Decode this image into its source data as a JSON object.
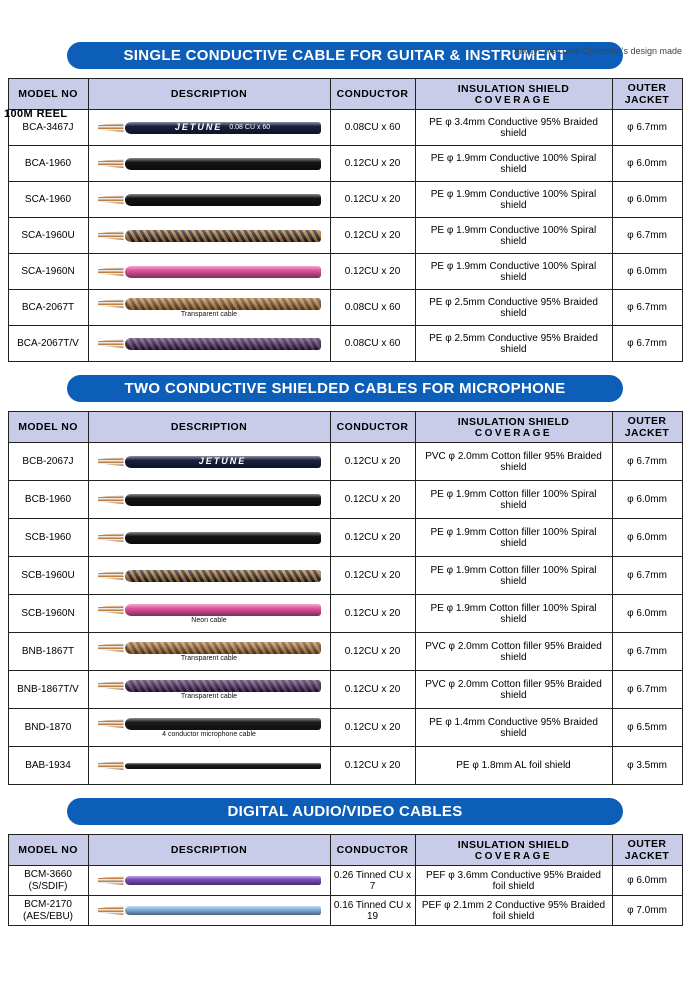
{
  "page": {
    "top_note": "Always welcome Customer's design made",
    "reel_label": "100M REEL"
  },
  "colors": {
    "banner_blue": "#0d5eb8",
    "header_bg": "#c9cce9",
    "copper": "#b97b3c"
  },
  "columns": {
    "model": "MODEL NO",
    "description": "DESCRIPTION",
    "conductor": "CONDUCTOR",
    "insulation_line1": "INSULATION SHIELD",
    "insulation_line2": "COVERAGE",
    "jacket_line1": "OUTER",
    "jacket_line2": "JACKET"
  },
  "sections": [
    {
      "title": "SINGLE CONDUCTIVE CABLE FOR GUITAR & INSTRUMENT",
      "rows": [
        {
          "model": "BCA-3467J",
          "conductor": "0.08CU x 60",
          "insulation": "PE φ 3.4mm Conductive 95% Braided shield",
          "jacket": "φ 6.7mm",
          "cable": {
            "pattern": "solid",
            "color": "#1b2142",
            "brand": "JETUNE",
            "brand_suffix": "0.08 CU x 60"
          }
        },
        {
          "model": "BCA-1960",
          "conductor": "0.12CU x 20",
          "insulation": "PE φ 1.9mm Conductive 100% Spiral shield",
          "jacket": "φ 6.0mm",
          "cable": {
            "pattern": "solid",
            "color": "#141414"
          }
        },
        {
          "model": "SCA-1960",
          "conductor": "0.12CU x 20",
          "insulation": "PE φ 1.9mm Conductive 100% Spiral shield",
          "jacket": "φ 6.0mm",
          "cable": {
            "pattern": "solid",
            "color": "#141414"
          }
        },
        {
          "model": "SCA-1960U",
          "conductor": "0.12CU x 20",
          "insulation": "PE φ 1.9mm Conductive 100% Spiral shield",
          "jacket": "φ 6.7mm",
          "cable": {
            "pattern": "braid",
            "color": "#1a1a1a",
            "color2": "#b97b3c"
          }
        },
        {
          "model": "SCA-1960N",
          "conductor": "0.12CU x 20",
          "insulation": "PE φ 1.9mm Conductive 100% Spiral shield",
          "jacket": "φ 6.0mm",
          "cable": {
            "pattern": "solid",
            "color": "#e2559f"
          }
        },
        {
          "model": "BCA-2067T",
          "conductor": "0.08CU x 60",
          "insulation": "PE φ 2.5mm Conductive 95% Braided shield",
          "jacket": "φ 6.7mm",
          "cable": {
            "pattern": "braid",
            "color": "#c98d4f",
            "color2": "#70451d",
            "caption": "Transparent cable"
          }
        },
        {
          "model": "BCA-2067T/V",
          "conductor": "0.08CU x 60",
          "insulation": "PE φ 2.5mm Conductive 95% Braided shield",
          "jacket": "φ 6.7mm",
          "cable": {
            "pattern": "braid",
            "color": "#6b3f85",
            "color2": "#241230"
          }
        }
      ]
    },
    {
      "title": "TWO CONDUCTIVE SHIELDED CABLES FOR MICROPHONE",
      "rows": [
        {
          "model": "BCB-2067J",
          "conductor": "0.12CU x 20",
          "insulation": "PVC φ 2.0mm Cotton filler 95% Braided shield",
          "jacket": "φ 6.7mm",
          "cable": {
            "pattern": "solid",
            "color": "#1b2142",
            "brand": "JETUNE"
          }
        },
        {
          "model": "BCB-1960",
          "conductor": "0.12CU x 20",
          "insulation": "PE φ 1.9mm Cotton filler 100% Spiral shield",
          "jacket": "φ 6.0mm",
          "cable": {
            "pattern": "solid",
            "color": "#141414"
          }
        },
        {
          "model": "SCB-1960",
          "conductor": "0.12CU x 20",
          "insulation": "PE φ 1.9mm Cotton filler 100% Spiral shield",
          "jacket": "φ 6.0mm",
          "cable": {
            "pattern": "solid",
            "color": "#141414"
          }
        },
        {
          "model": "SCB-1960U",
          "conductor": "0.12CU x 20",
          "insulation": "PE φ 1.9mm Cotton filler 100% Spiral shield",
          "jacket": "φ 6.7mm",
          "cable": {
            "pattern": "braid",
            "color": "#1a1a1a",
            "color2": "#b97b3c"
          }
        },
        {
          "model": "SCB-1960N",
          "conductor": "0.12CU x 20",
          "insulation": "PE φ 1.9mm Cotton filler 100% Spiral shield",
          "jacket": "φ 6.0mm",
          "cable": {
            "pattern": "solid",
            "color": "#e2559f",
            "caption": "Neon cable"
          }
        },
        {
          "model": "BNB-1867T",
          "conductor": "0.12CU x 20",
          "insulation": "PVC φ 2.0mm Cotton filler 95% Braided shield",
          "jacket": "φ 6.7mm",
          "cable": {
            "pattern": "braid",
            "color": "#c98d4f",
            "color2": "#70451d",
            "caption": "Transparent cable"
          }
        },
        {
          "model": "BNB-1867T/V",
          "conductor": "0.12CU x 20",
          "insulation": "PVC φ 2.0mm Cotton filler 95% Braided shield",
          "jacket": "φ 6.7mm",
          "cable": {
            "pattern": "braid",
            "color": "#6b3f85",
            "color2": "#241230",
            "caption": "Transparent cable"
          }
        },
        {
          "model": "BND-1870",
          "conductor": "0.12CU x 20",
          "insulation": "PE φ 1.4mm Conductive 95% Braided shield",
          "jacket": "φ 6.5mm",
          "cable": {
            "pattern": "solid",
            "color": "#1b1b1b",
            "caption": "4 conductor microphone cable"
          }
        },
        {
          "model": "BAB-1934",
          "conductor": "0.12CU x 20",
          "insulation": "PE φ 1.8mm AL foil shield",
          "jacket": "φ 3.5mm",
          "cable": {
            "pattern": "solid",
            "color": "#1b1b1b",
            "thin": true
          }
        }
      ]
    },
    {
      "title": "DIGITAL AUDIO/VIDEO CABLES",
      "rows": [
        {
          "model": "BCM-3660\n(S/SDIF)",
          "conductor": "0.26 Tinned CU x 7",
          "insulation": "PEF φ 3.6mm Conductive 95% Braided foil shield",
          "jacket": "φ 6.0mm",
          "cable": {
            "pattern": "solid",
            "color": "#7a52c4"
          }
        },
        {
          "model": "BCM-2170\n(AES/EBU)",
          "conductor": "0.16 Tinned CU x 19",
          "insulation": "PEF φ 2.1mm 2 Conductive 95% Braided foil shield",
          "jacket": "φ 7.0mm",
          "cable": {
            "pattern": "solid",
            "color": "#85b5e3"
          }
        }
      ]
    }
  ]
}
